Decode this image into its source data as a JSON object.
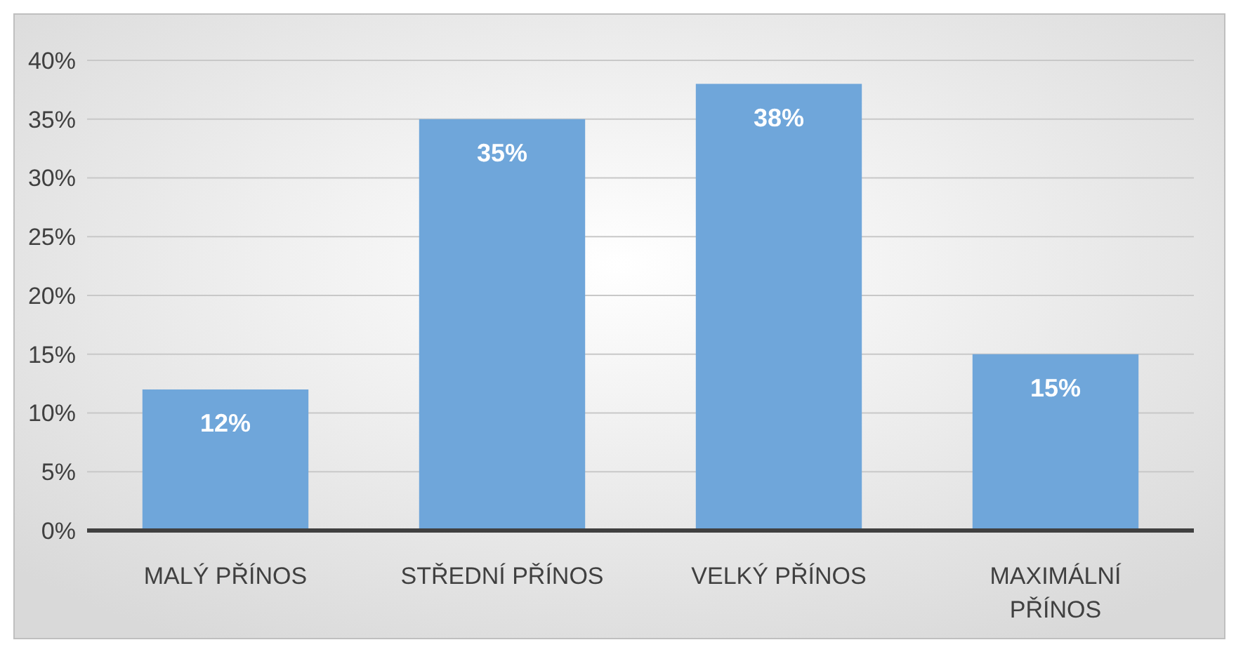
{
  "chart_data": {
    "type": "bar",
    "categories": [
      "MALÝ PŘÍNOS",
      "STŘEDNÍ PŘÍNOS",
      "VELKÝ PŘÍNOS",
      "MAXIMÁLNÍ PŘÍNOS"
    ],
    "values": [
      12,
      35,
      38,
      15
    ],
    "value_labels": [
      "12%",
      "35%",
      "38%",
      "15%"
    ],
    "color": "#6fa6da",
    "ylim": [
      0,
      40
    ],
    "yticks": [
      {
        "value": 0,
        "label": "0%"
      },
      {
        "value": 5,
        "label": "5%"
      },
      {
        "value": 10,
        "label": "10%"
      },
      {
        "value": 15,
        "label": "15%"
      },
      {
        "value": 20,
        "label": "20%"
      },
      {
        "value": 25,
        "label": "25%"
      },
      {
        "value": 30,
        "label": "30%"
      },
      {
        "value": 35,
        "label": "35%"
      },
      {
        "value": 40,
        "label": "40%"
      }
    ],
    "grid": "y"
  }
}
